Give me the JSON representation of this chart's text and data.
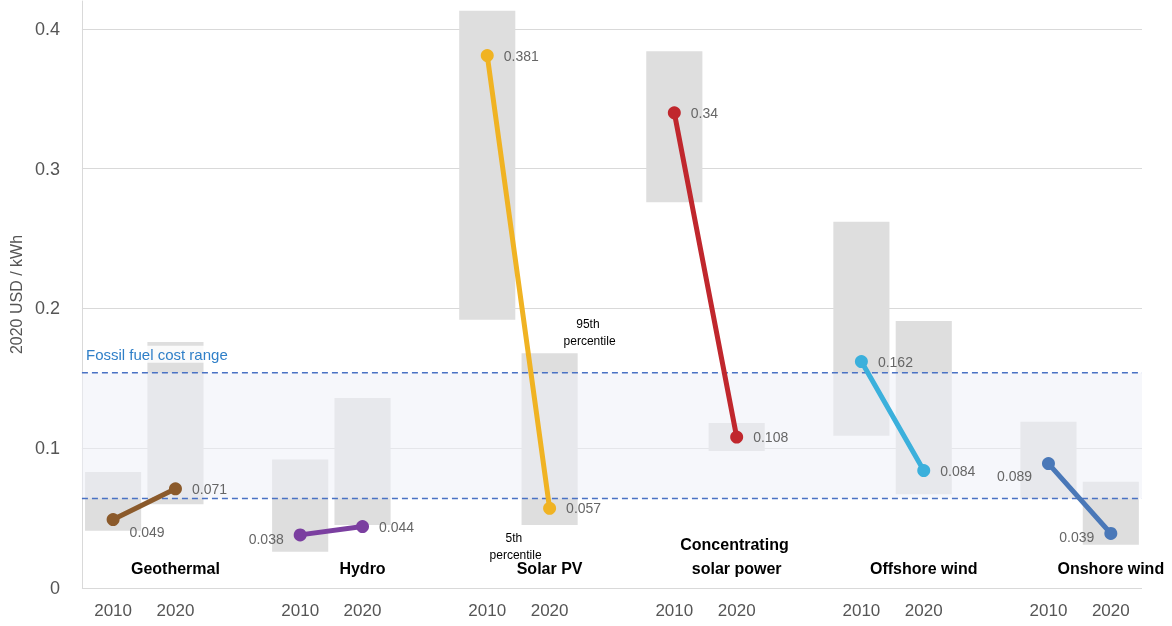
{
  "chart_data": {
    "type": "bar",
    "categories": [
      "2010",
      "2020",
      null,
      "2010",
      "2020",
      null,
      "2010",
      "2020",
      null,
      "2010",
      "2020",
      null,
      "2010",
      "2020",
      null,
      "2010",
      "2020"
    ],
    "base": [
      0.041,
      0.06,
      null,
      0.026,
      0.045,
      null,
      0.192,
      0.045,
      null,
      0.276,
      0.098,
      null,
      0.109,
      0.067,
      null,
      0.064,
      0.031
    ],
    "values": [
      0.042,
      0.116,
      null,
      0.066,
      0.091,
      null,
      0.221,
      0.123,
      null,
      0.108,
      0.02,
      null,
      0.153,
      0.124,
      null,
      0.055,
      0.045
    ],
    "color": "#dedede",
    "series": [
      {
        "type": "line",
        "color": "#8b5a2b",
        "values": [
          0.049,
          0.071,
          null,
          null,
          null,
          null,
          null,
          null,
          null,
          null,
          null,
          null,
          null,
          null,
          null,
          null,
          null
        ],
        "value_labels": [
          "0.049",
          "0.071",
          null,
          null,
          null,
          null,
          null,
          null,
          null,
          null,
          null,
          null,
          null,
          null,
          null,
          null,
          null
        ]
      },
      {
        "type": "line",
        "color": "#7b3fa0",
        "values": [
          null,
          null,
          null,
          0.038,
          0.044,
          null,
          null,
          null,
          null,
          null,
          null,
          null,
          null,
          null,
          null,
          null,
          null
        ],
        "value_labels": [
          null,
          null,
          null,
          "0.038",
          "0.044",
          null,
          null,
          null,
          null,
          null,
          null,
          null,
          null,
          null,
          null,
          null,
          null
        ]
      },
      {
        "type": "line",
        "color": "#f0b323",
        "values": [
          null,
          null,
          null,
          null,
          null,
          null,
          0.381,
          0.057,
          null,
          null,
          null,
          null,
          null,
          null,
          null,
          null,
          null
        ],
        "value_labels": [
          null,
          null,
          null,
          null,
          null,
          null,
          "0.381",
          "0.057",
          null,
          null,
          null,
          null,
          null,
          null,
          null,
          null,
          null
        ]
      },
      {
        "type": "line",
        "color": "#c0272d",
        "values": [
          null,
          null,
          null,
          null,
          null,
          null,
          null,
          null,
          null,
          0.34,
          0.108,
          null,
          null,
          null,
          null,
          null,
          null
        ],
        "value_labels": [
          null,
          null,
          null,
          null,
          null,
          null,
          null,
          null,
          null,
          "0.34",
          "0.108",
          null,
          null,
          null,
          null,
          null,
          null
        ]
      },
      {
        "type": "line",
        "color": "#3bb0dc",
        "values": [
          null,
          null,
          null,
          null,
          null,
          null,
          null,
          null,
          null,
          null,
          null,
          null,
          0.162,
          0.084,
          null,
          null,
          null
        ],
        "value_labels": [
          null,
          null,
          null,
          null,
          null,
          null,
          null,
          null,
          null,
          null,
          null,
          null,
          "0.162",
          "0.084",
          null,
          null,
          null
        ]
      },
      {
        "type": "line",
        "color": "#4a78b8",
        "values": [
          null,
          null,
          null,
          null,
          null,
          null,
          null,
          null,
          null,
          null,
          null,
          null,
          null,
          null,
          null,
          0.089,
          0.039
        ],
        "value_labels": [
          null,
          null,
          null,
          null,
          null,
          null,
          null,
          null,
          null,
          null,
          null,
          null,
          null,
          null,
          null,
          "0.089",
          "0.039"
        ]
      }
    ],
    "marker": "circle",
    "ylabel": "2020 USD / kWh",
    "ylim": [
      0,
      0.42
    ],
    "yticks": [
      0,
      0.1,
      0.2,
      0.3,
      0.4
    ],
    "grid": "y",
    "bands": [
      {
        "axis": "y",
        "from": 0.064,
        "to": 0.154,
        "label": "Fossil fuel cost range",
        "color": "#eef1f8"
      }
    ],
    "ref_lines": [
      {
        "axis": "y",
        "value": 0.064,
        "color": "#4a72c4",
        "line_style": "dashed"
      },
      {
        "axis": "y",
        "value": 0.154,
        "color": "#4a72c4",
        "line_style": "dashed"
      }
    ],
    "annotations": [
      "Geothermal",
      "Hydro",
      "Solar PV",
      "Concentrating solar power",
      "Offshore wind",
      "Onshore wind",
      "95th percentile",
      "5th percentile"
    ]
  }
}
